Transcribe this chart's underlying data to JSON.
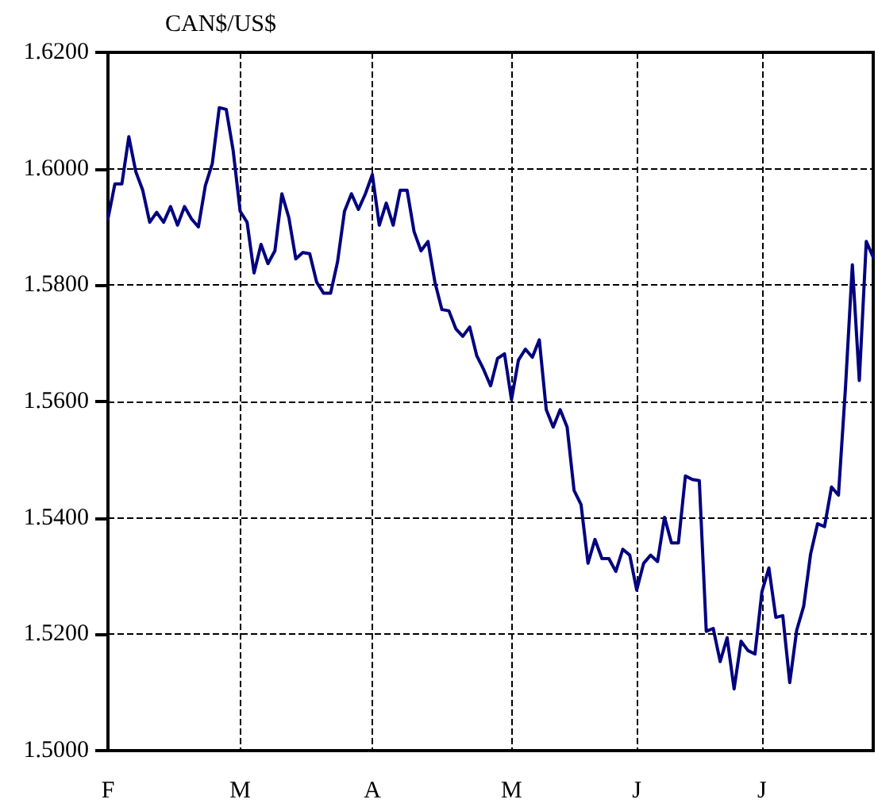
{
  "chart_data": {
    "type": "line",
    "ylabel": "CAN$/US$",
    "categories": [
      "F",
      null,
      null,
      null,
      null,
      null,
      null,
      null,
      null,
      null,
      null,
      null,
      null,
      null,
      null,
      null,
      null,
      null,
      null,
      "M",
      null,
      null,
      null,
      null,
      null,
      null,
      null,
      null,
      null,
      null,
      null,
      null,
      null,
      null,
      null,
      null,
      null,
      null,
      "A",
      null,
      null,
      null,
      null,
      null,
      null,
      null,
      null,
      null,
      null,
      null,
      null,
      null,
      null,
      null,
      null,
      null,
      null,
      null,
      "M",
      null,
      null,
      null,
      null,
      null,
      null,
      null,
      null,
      null,
      null,
      null,
      null,
      null,
      null,
      null,
      null,
      null,
      "J",
      null,
      null,
      null,
      null,
      null,
      null,
      null,
      null,
      null,
      null,
      null,
      null,
      null,
      null,
      null,
      null,
      null,
      "J",
      null,
      null,
      null,
      null,
      null,
      null,
      null,
      null,
      null,
      null,
      null,
      null,
      null,
      null,
      null,
      null
    ],
    "series": [
      {
        "color": "#000080",
        "values": [
          1.5914,
          1.5974,
          1.5974,
          1.6055,
          1.5995,
          1.5963,
          1.5908,
          1.5925,
          1.5908,
          1.5935,
          1.5903,
          1.5935,
          1.5914,
          1.59,
          1.5971,
          1.6009,
          1.6105,
          1.6102,
          1.6031,
          1.5927,
          1.5908,
          1.5821,
          1.587,
          1.5837,
          1.5859,
          1.5957,
          1.5916,
          1.5845,
          1.5856,
          1.5854,
          1.5805,
          1.5786,
          1.5786,
          1.584,
          1.5927,
          1.5957,
          1.593,
          1.5957,
          1.599,
          1.5903,
          1.5941,
          1.5903,
          1.5963,
          1.5963,
          1.5892,
          1.5859,
          1.5875,
          1.5805,
          1.5758,
          1.5756,
          1.5725,
          1.5712,
          1.5728,
          1.5679,
          1.5655,
          1.5627,
          1.5674,
          1.5682,
          1.5603,
          1.5671,
          1.569,
          1.5676,
          1.5706,
          1.5586,
          1.5556,
          1.5586,
          1.5556,
          1.5447,
          1.5423,
          1.5322,
          1.5363,
          1.533,
          1.533,
          1.5308,
          1.5346,
          1.5336,
          1.5276,
          1.5322,
          1.5336,
          1.5325,
          1.5401,
          1.5357,
          1.5357,
          1.5472,
          1.5466,
          1.5464,
          1.5205,
          1.521,
          1.5153,
          1.5194,
          1.5106,
          1.5188,
          1.5172,
          1.5166,
          1.5273,
          1.5314,
          1.5229,
          1.5232,
          1.5117,
          1.5207,
          1.5248,
          1.5338,
          1.539,
          1.5385,
          1.5453,
          1.5439,
          1.5622,
          1.5835,
          1.5636,
          1.5875,
          1.5848
        ]
      }
    ],
    "ylim": [
      1.5,
      1.62
    ],
    "yticks": [
      {
        "value": 1.5,
        "label": "1.5000"
      },
      {
        "value": 1.52,
        "label": "1.5200"
      },
      {
        "value": 1.54,
        "label": "1.5400"
      },
      {
        "value": 1.56,
        "label": "1.5600"
      },
      {
        "value": 1.58,
        "label": "1.5800"
      },
      {
        "value": 1.6,
        "label": "1.6000"
      },
      {
        "value": 1.62,
        "label": "1.6200"
      }
    ],
    "grid": true,
    "marker": "none",
    "line_style": "solid"
  }
}
